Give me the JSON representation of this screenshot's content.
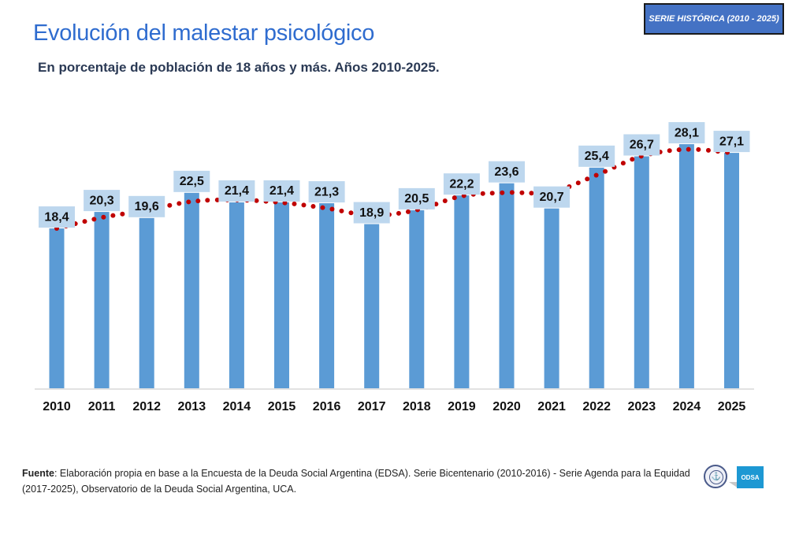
{
  "header": {
    "title": "Evolución del malestar psicológico",
    "subtitle": "En porcentaje de población de 18 años y más. Años 2010-2025.",
    "badge": "SERIE HISTÓRICA (2010 - 2025)"
  },
  "colors": {
    "title": "#2f6ccf",
    "bar": "#5b9bd5",
    "trend": "#c00000",
    "label_bg": "#bdd7ee",
    "badge_bg": "#4472c4"
  },
  "chart_data": {
    "type": "bar",
    "title": "Evolución del malestar psicológico",
    "subtitle": "En porcentaje de población de 18 años y más. Años 2010-2025.",
    "xlabel": "",
    "ylabel": "",
    "ylim": [
      0,
      30
    ],
    "grid": false,
    "categories": [
      "2010",
      "2011",
      "2012",
      "2013",
      "2014",
      "2015",
      "2016",
      "2017",
      "2018",
      "2019",
      "2020",
      "2021",
      "2022",
      "2023",
      "2024",
      "2025"
    ],
    "values": [
      18.4,
      20.3,
      19.6,
      22.5,
      21.4,
      21.4,
      21.3,
      18.9,
      20.5,
      22.2,
      23.6,
      20.7,
      25.4,
      26.7,
      28.1,
      27.1
    ],
    "labels": [
      "18,4",
      "20,3",
      "19,6",
      "22,5",
      "21,4",
      "21,4",
      "21,3",
      "18,9",
      "20,5",
      "22,2",
      "23,6",
      "20,7",
      "25,4",
      "26,7",
      "28,1",
      "27,1"
    ],
    "trendline": {
      "type": "smoothed-moving",
      "style": "dotted",
      "color": "#c00000"
    }
  },
  "footer": {
    "source_label": "Fuente",
    "source_text": ": Elaboración propia en base a la Encuesta de la Deuda Social Argentina (EDSA). Serie Bicentenario (2010-2016) - Serie Agenda para la Equidad (2017-2025), Observatorio de la Deuda Social Argentina, UCA.",
    "logo_text": "ODSA"
  }
}
